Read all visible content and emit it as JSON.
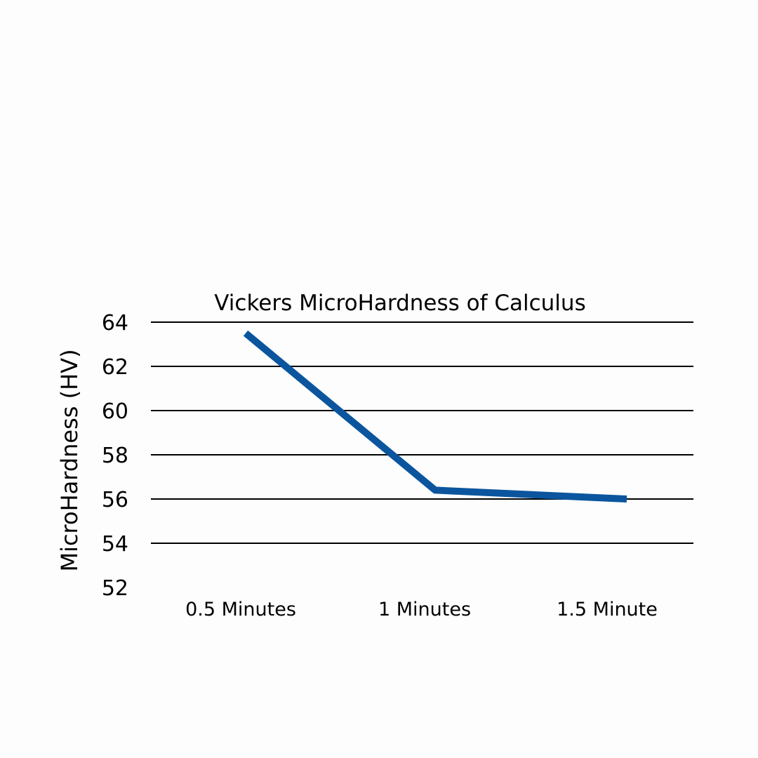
{
  "chart_data": {
    "type": "line",
    "title": "Vickers MicroHardness of Calculus",
    "xlabel": "",
    "ylabel": "MicroHardness (HV)",
    "categories": [
      "0.5 Minutes",
      "1 Minutes",
      "1.5 Minute"
    ],
    "series": [
      {
        "values": [
          63.5,
          56.4,
          56.0
        ],
        "color": "#0b559e"
      }
    ],
    "ylim": [
      52,
      64
    ],
    "yticks": [
      52,
      54,
      56,
      58,
      60,
      62,
      64
    ],
    "ytick_labels": [
      "52",
      "54",
      "56",
      "58",
      "60",
      "62",
      "64"
    ],
    "grid": true,
    "legend": "none"
  }
}
